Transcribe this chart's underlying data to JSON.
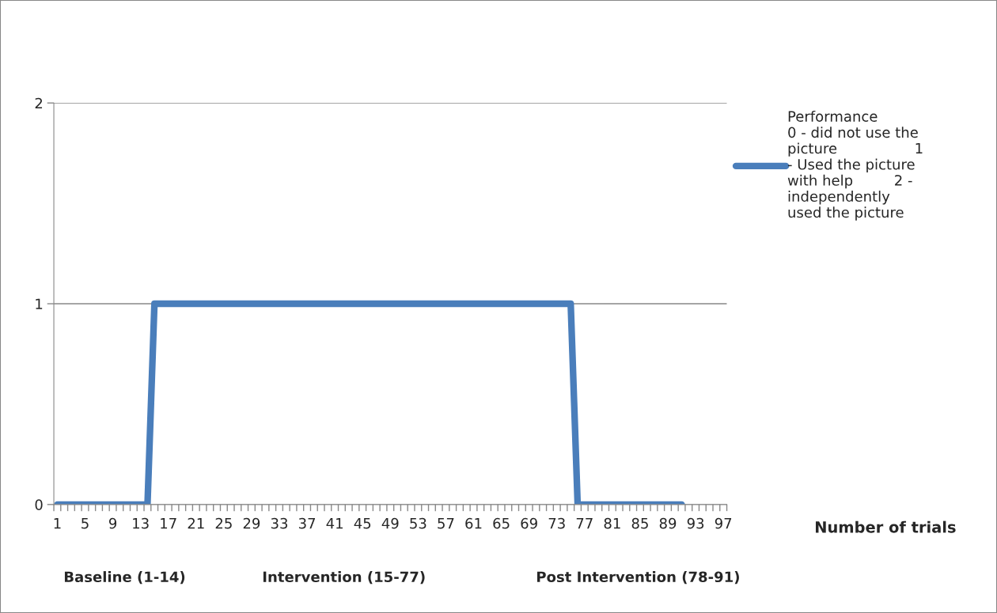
{
  "chart_data": {
    "type": "line",
    "categories": [
      "1",
      null,
      null,
      null,
      "5",
      null,
      null,
      null,
      "9",
      null,
      null,
      null,
      "13",
      null,
      null,
      null,
      "17",
      null,
      null,
      null,
      "21",
      null,
      null,
      null,
      "25",
      null,
      null,
      null,
      "29",
      null,
      null,
      null,
      "33",
      null,
      null,
      null,
      "37",
      null,
      null,
      null,
      "41",
      null,
      null,
      null,
      "45",
      null,
      null,
      null,
      "49",
      null,
      null,
      null,
      "53",
      null,
      null,
      null,
      "57",
      null,
      null,
      null,
      "61",
      null,
      null,
      null,
      "65",
      null,
      null,
      null,
      "69",
      null,
      null,
      null,
      "73",
      null,
      null,
      null,
      "77",
      null,
      null,
      null,
      "81",
      null,
      null,
      null,
      "85",
      null,
      null,
      null,
      "89",
      null,
      null,
      null,
      "93",
      null,
      null,
      null,
      "97"
    ],
    "series": [
      {
        "name": "Performance\n0 - did not use the\npicture                 1\n- Used the picture\nwith help         2 -\nindependently\nused the picture",
        "color": "#4a7ebb",
        "values": [
          0,
          0,
          0,
          0,
          0,
          0,
          0,
          0,
          0,
          0,
          0,
          0,
          0,
          0,
          1,
          1,
          1,
          1,
          1,
          1,
          1,
          1,
          1,
          1,
          1,
          1,
          1,
          1,
          1,
          1,
          1,
          1,
          1,
          1,
          1,
          1,
          1,
          1,
          1,
          1,
          1,
          1,
          1,
          1,
          1,
          1,
          1,
          1,
          1,
          1,
          1,
          1,
          1,
          1,
          1,
          1,
          1,
          1,
          1,
          1,
          1,
          1,
          1,
          1,
          1,
          1,
          1,
          1,
          1,
          1,
          1,
          1,
          1,
          1,
          1,
          0,
          0,
          0,
          0,
          0,
          0,
          0,
          0,
          0,
          0,
          0,
          0,
          0,
          0,
          0,
          0,
          null,
          null,
          null,
          null,
          null,
          null
        ]
      }
    ],
    "annotations": [
      "Number of trials",
      "Baseline (1-14)",
      "Intervention (15-77)",
      "Post Intervention (78-91)"
    ],
    "ylim": [
      0,
      2
    ],
    "yticks": [
      0,
      1,
      2
    ],
    "grid": "y",
    "legend": "right",
    "marker": "none",
    "line_style": "solid"
  }
}
